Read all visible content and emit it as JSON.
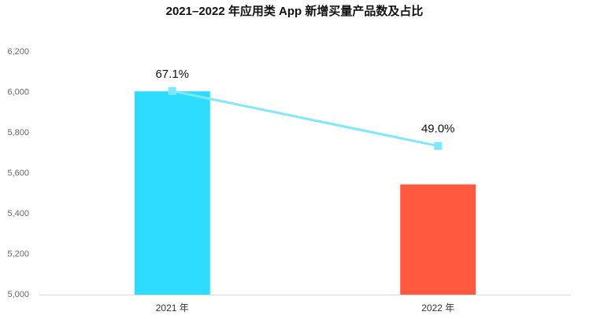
{
  "chart_data": {
    "type": "bar",
    "title": "2021–2022 年应用类 App 新增买量产品数及占比",
    "categories": [
      "2021 年",
      "2022 年"
    ],
    "series": [
      {
        "type": "bar",
        "colors": [
          "#2edcff",
          "#ff5a40"
        ],
        "values": [
          6005,
          5545
        ]
      },
      {
        "type": "line",
        "axis": "y2",
        "color": "#7fe8fb",
        "values": [
          67.1,
          49.0
        ],
        "value_labels": [
          "67.1%",
          "49.0%"
        ]
      }
    ],
    "ylim": [
      5000,
      6200
    ],
    "yticks": [
      {
        "value": 5000,
        "label": "5,000"
      },
      {
        "value": 5200,
        "label": "5,200"
      },
      {
        "value": 5400,
        "label": "5,400"
      },
      {
        "value": 5600,
        "label": "5,600"
      },
      {
        "value": 5800,
        "label": "5,800"
      },
      {
        "value": 6000,
        "label": "6,000"
      },
      {
        "value": 6200,
        "label": "6,200"
      }
    ],
    "y2lim": [
      0,
      80
    ],
    "grid": false
  }
}
